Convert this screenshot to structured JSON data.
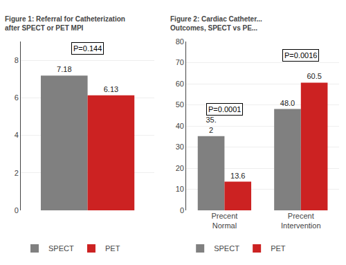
{
  "chart_data": [
    {
      "type": "bar",
      "title": "Figure 1: Referral for Catheterization\nafter SPECT or PET MPI",
      "categories": [
        null
      ],
      "series": [
        {
          "name": "SPECT",
          "color": "#808080",
          "values": [
            7.18
          ]
        },
        {
          "name": "PET",
          "color": "#cc2222",
          "values": [
            6.13
          ]
        }
      ],
      "annotations": [
        "P=0.144"
      ],
      "ylim": [
        0,
        9
      ],
      "yticks": [
        0,
        2,
        4,
        6,
        8
      ],
      "grid": true,
      "legend": "lower left",
      "data_labels": true,
      "tick_labels": "y"
    },
    {
      "type": "bar",
      "title": "Figure 2: Cardiac Catheter...\nOutcomes, SPECT vs PE...",
      "categories": [
        "Precent\nNormal",
        "Precent\nIntervention"
      ],
      "series": [
        {
          "name": "SPECT",
          "color": "#808080",
          "values": [
            35.2,
            48.0
          ],
          "value_labels": [
            "35.\n2",
            "48.0"
          ]
        },
        {
          "name": "PET",
          "color": "#cc2222",
          "values": [
            13.6,
            60.5
          ],
          "value_labels": [
            "13.6",
            "60.5"
          ]
        }
      ],
      "annotations": [
        "P=0.0001",
        "P=0.0016"
      ],
      "ylim": [
        0,
        80
      ],
      "yticks": [
        0,
        10,
        20,
        30,
        40,
        50,
        60,
        70,
        80
      ],
      "grid": true,
      "legend": "lower left",
      "data_labels": true
    }
  ]
}
